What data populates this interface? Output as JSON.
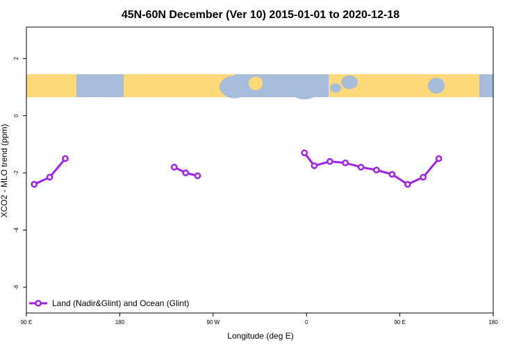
{
  "chart_data": {
    "type": "line",
    "title": "45N-60N December (Ver 10)   2015-01-01 to 2020-12-18",
    "xlabel": "Longitude (deg E)",
    "ylabel": "XCO2 - MLO trend (ppm)",
    "xlim": [
      90,
      540
    ],
    "ylim": [
      -6.9,
      3.1
    ],
    "x_ticks": [
      {
        "value": 90,
        "label": "90 E"
      },
      {
        "value": 180,
        "label": "180"
      },
      {
        "value": 270,
        "label": "90 W"
      },
      {
        "value": 360,
        "label": "0"
      },
      {
        "value": 450,
        "label": "90 E"
      },
      {
        "value": 540,
        "label": "180"
      }
    ],
    "y_ticks": [
      {
        "value": 2,
        "label": "2"
      },
      {
        "value": 0,
        "label": "0"
      },
      {
        "value": -2,
        "label": "-2"
      },
      {
        "value": -4,
        "label": "-4"
      },
      {
        "value": -6,
        "label": "-6"
      }
    ],
    "series": [
      {
        "name": "Land (Nadir&Glint) and Ocean (Glint)",
        "color": "#a020f0",
        "segments": [
          [
            [
              97.5,
              -2.4
            ],
            [
              112.5,
              -2.15
            ],
            [
              127.5,
              -1.5
            ]
          ],
          [
            [
              232.5,
              -1.8
            ],
            [
              243.5,
              -2.0
            ],
            [
              255,
              -2.1
            ]
          ],
          [
            [
              358,
              -1.3
            ],
            [
              367.5,
              -1.75
            ],
            [
              382.5,
              -1.6
            ],
            [
              397.5,
              -1.65
            ],
            [
              412.5,
              -1.8
            ],
            [
              427.5,
              -1.9
            ],
            [
              442.5,
              -2.05
            ],
            [
              457.5,
              -2.4
            ],
            [
              472.5,
              -2.15
            ],
            [
              487.5,
              -1.5
            ]
          ]
        ]
      }
    ],
    "map_band": {
      "ymin": 0.65,
      "ymax": 1.45,
      "ocean_color": "#a7bcdb",
      "land_color": "#fdd97a"
    },
    "grid": false,
    "legend_position": "bottom-left"
  }
}
